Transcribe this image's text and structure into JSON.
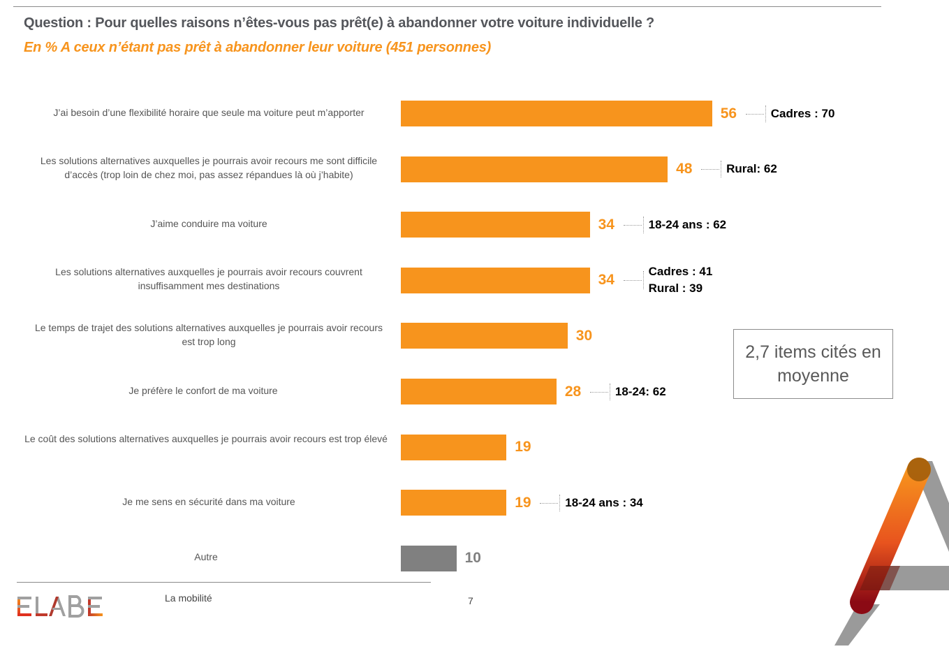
{
  "header": {
    "question": "Question : Pour quelles raisons n’êtes-vous pas prêt(e) à abandonner votre voiture individuelle ?",
    "subtitle": "En  % A ceux n’étant pas prêt à abandonner leur voiture (451 personnes)"
  },
  "chart_data": {
    "type": "bar",
    "orientation": "horizontal",
    "title": "Question : Pour quelles raisons n’êtes-vous pas prêt(e) à abandonner votre voiture individuelle ?",
    "subtitle": "En  % A ceux n’étant pas prêt à abandonner leur voiture (451 personnes)",
    "xlabel": "",
    "ylabel": "",
    "xlim": [
      0,
      60
    ],
    "grid": false,
    "categories": [
      "J’ai besoin d’une flexibilité horaire que seule ma voiture peut m’apporter",
      "Les solutions alternatives auxquelles je pourrais avoir recours me sont difficile d’accès (trop loin de chez moi, pas assez répandues là où j’habite)",
      "J’aime conduire ma voiture",
      "Les solutions alternatives auxquelles je pourrais avoir recours couvrent insuffisamment mes destinations",
      "Le temps de trajet des solutions alternatives auxquelles je pourrais avoir recours est trop long",
      "Je préfère le confort de ma voiture",
      "Le coût des solutions alternatives auxquelles je pourrais avoir recours est trop élevé",
      "Je me sens en sécurité dans ma voiture",
      "Autre"
    ],
    "values": [
      56,
      48,
      34,
      34,
      30,
      28,
      19,
      19,
      10
    ],
    "value_labels": [
      "56",
      "48",
      "34",
      "34",
      "30",
      "28",
      "19",
      "19",
      "10"
    ],
    "bar_colors": [
      "#f7941d",
      "#f7941d",
      "#f7941d",
      "#f7941d",
      "#f7941d",
      "#f7941d",
      "#f7941d",
      "#f7941d",
      "#808080"
    ],
    "label_colors": [
      "#f7941d",
      "#f7941d",
      "#f7941d",
      "#f7941d",
      "#f7941d",
      "#f7941d",
      "#f7941d",
      "#f7941d",
      "#808080"
    ],
    "annotations": [
      [
        "Cadres : 70"
      ],
      [
        "Rural: 62"
      ],
      [
        "18-24 ans : 62"
      ],
      [
        "Cadres : 41",
        "Rural : 39"
      ],
      [],
      [
        "18-24: 62"
      ],
      [],
      [
        "18-24 ans : 34"
      ],
      []
    ]
  },
  "note": {
    "text": "2,7 items cités en moyenne"
  },
  "footer": {
    "logo": "ELABE",
    "section": "La mobilité",
    "page_number": "7"
  },
  "colors": {
    "accent": "#f7941d",
    "other": "#808080",
    "title": "#54565b"
  }
}
